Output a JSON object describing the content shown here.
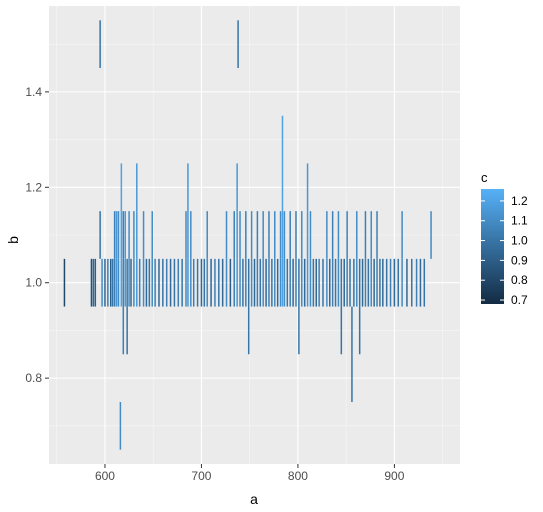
{
  "chart_data": {
    "type": "heatmap",
    "geom": "tile",
    "xlabel": "a",
    "ylabel": "b",
    "xlim": [
      542,
      968
    ],
    "ylim": [
      0.62,
      1.58
    ],
    "x_ticks": [
      600,
      700,
      800,
      900
    ],
    "y_ticks": [
      0.8,
      1.0,
      1.2,
      1.4
    ],
    "x_tick_labels": [
      "600",
      "700",
      "800",
      "900"
    ],
    "y_tick_labels": [
      "0.8",
      "1.0",
      "1.2",
      "1.4"
    ],
    "tile_height": 0.1,
    "grid": true,
    "legend": {
      "title": "c",
      "position": "right",
      "type": "colorbar",
      "range": [
        0.68,
        1.26
      ],
      "breaks": [
        0.7,
        0.8,
        0.9,
        1.0,
        1.1,
        1.2
      ],
      "labels": [
        "0.7",
        "0.8",
        "0.9",
        "1.0",
        "1.1",
        "1.2"
      ],
      "low_color": "#132B43",
      "high_color": "#56B1F7"
    },
    "columns": [
      {
        "x": 558,
        "y": [
          1.0
        ],
        "c": 0.8
      },
      {
        "x": 586,
        "y": [
          1.0
        ],
        "c": 0.85
      },
      {
        "x": 588,
        "y": [
          1.0
        ],
        "c": 0.95
      },
      {
        "x": 590,
        "y": [
          1.0
        ],
        "c": 0.9
      },
      {
        "x": 595,
        "y": [
          1.1,
          1.5
        ],
        "c": 1.0
      },
      {
        "x": 597,
        "y": [
          1.0
        ],
        "c": 1.1
      },
      {
        "x": 600,
        "y": [
          1.0
        ],
        "c": 0.95
      },
      {
        "x": 603,
        "y": [
          1.0
        ],
        "c": 1.05
      },
      {
        "x": 606,
        "y": [
          1.0
        ],
        "c": 0.9
      },
      {
        "x": 608,
        "y": [
          1.0
        ],
        "c": 1.0
      },
      {
        "x": 610,
        "y": [
          1.0,
          1.1
        ],
        "c": 1.05
      },
      {
        "x": 612,
        "y": [
          1.0,
          1.1
        ],
        "c": 1.15
      },
      {
        "x": 614,
        "y": [
          1.0,
          1.1
        ],
        "c": 1.1
      },
      {
        "x": 616,
        "y": [
          0.7
        ],
        "c": 1.1
      },
      {
        "x": 617,
        "y": [
          1.0,
          1.1,
          1.2
        ],
        "c": 1.2
      },
      {
        "x": 619,
        "y": [
          0.9,
          1.0,
          1.1
        ],
        "c": 1.05
      },
      {
        "x": 621,
        "y": [
          1.0,
          1.1
        ],
        "c": 1.15
      },
      {
        "x": 623,
        "y": [
          0.9,
          1.0
        ],
        "c": 1.0
      },
      {
        "x": 625,
        "y": [
          1.0,
          1.1
        ],
        "c": 1.1
      },
      {
        "x": 627,
        "y": [
          1.0
        ],
        "c": 0.95
      },
      {
        "x": 630,
        "y": [
          1.0,
          1.1
        ],
        "c": 1.1
      },
      {
        "x": 633,
        "y": [
          1.0,
          1.1,
          1.2
        ],
        "c": 1.15
      },
      {
        "x": 636,
        "y": [
          1.0
        ],
        "c": 1.05
      },
      {
        "x": 640,
        "y": [
          1.0,
          1.1
        ],
        "c": 1.1
      },
      {
        "x": 643,
        "y": [
          1.0
        ],
        "c": 0.95
      },
      {
        "x": 646,
        "y": [
          1.0
        ],
        "c": 1.0
      },
      {
        "x": 649,
        "y": [
          1.0,
          1.1
        ],
        "c": 1.1
      },
      {
        "x": 652,
        "y": [
          1.0
        ],
        "c": 1.05
      },
      {
        "x": 656,
        "y": [
          1.0
        ],
        "c": 0.95
      },
      {
        "x": 660,
        "y": [
          1.0
        ],
        "c": 1.0
      },
      {
        "x": 664,
        "y": [
          1.0
        ],
        "c": 1.05
      },
      {
        "x": 668,
        "y": [
          1.0
        ],
        "c": 0.95
      },
      {
        "x": 672,
        "y": [
          1.0
        ],
        "c": 1.0
      },
      {
        "x": 676,
        "y": [
          1.0
        ],
        "c": 1.05
      },
      {
        "x": 680,
        "y": [
          1.0
        ],
        "c": 1.0
      },
      {
        "x": 684,
        "y": [
          1.0,
          1.1
        ],
        "c": 1.1
      },
      {
        "x": 686,
        "y": [
          1.0,
          1.1,
          1.2
        ],
        "c": 1.15
      },
      {
        "x": 689,
        "y": [
          1.0,
          1.1
        ],
        "c": 1.1
      },
      {
        "x": 692,
        "y": [
          1.0
        ],
        "c": 1.05
      },
      {
        "x": 696,
        "y": [
          1.0
        ],
        "c": 1.0
      },
      {
        "x": 700,
        "y": [
          1.0
        ],
        "c": 0.95
      },
      {
        "x": 703,
        "y": [
          1.0
        ],
        "c": 1.0
      },
      {
        "x": 706,
        "y": [
          1.0,
          1.1
        ],
        "c": 1.1
      },
      {
        "x": 710,
        "y": [
          1.0
        ],
        "c": 0.95
      },
      {
        "x": 714,
        "y": [
          1.0
        ],
        "c": 1.05
      },
      {
        "x": 718,
        "y": [
          1.0
        ],
        "c": 1.0
      },
      {
        "x": 722,
        "y": [
          1.0
        ],
        "c": 0.95
      },
      {
        "x": 726,
        "y": [
          1.0,
          1.1
        ],
        "c": 1.1
      },
      {
        "x": 730,
        "y": [
          1.0
        ],
        "c": 0.9
      },
      {
        "x": 734,
        "y": [
          1.0,
          1.1
        ],
        "c": 1.05
      },
      {
        "x": 737,
        "y": [
          1.0,
          1.1,
          1.2
        ],
        "c": 1.15
      },
      {
        "x": 738,
        "y": [
          1.5
        ],
        "c": 1.0
      },
      {
        "x": 740,
        "y": [
          1.0,
          1.1
        ],
        "c": 1.1
      },
      {
        "x": 743,
        "y": [
          1.0
        ],
        "c": 1.0
      },
      {
        "x": 746,
        "y": [
          1.0,
          1.1
        ],
        "c": 1.05
      },
      {
        "x": 749,
        "y": [
          0.9,
          1.0
        ],
        "c": 1.0
      },
      {
        "x": 752,
        "y": [
          1.0,
          1.1
        ],
        "c": 1.1
      },
      {
        "x": 755,
        "y": [
          1.0
        ],
        "c": 0.95
      },
      {
        "x": 758,
        "y": [
          1.0,
          1.1
        ],
        "c": 1.05
      },
      {
        "x": 761,
        "y": [
          1.0
        ],
        "c": 1.0
      },
      {
        "x": 764,
        "y": [
          1.0,
          1.1
        ],
        "c": 1.1
      },
      {
        "x": 767,
        "y": [
          1.0
        ],
        "c": 0.95
      },
      {
        "x": 770,
        "y": [
          1.0,
          1.1
        ],
        "c": 1.05
      },
      {
        "x": 773,
        "y": [
          1.0
        ],
        "c": 1.0
      },
      {
        "x": 776,
        "y": [
          1.0,
          1.1
        ],
        "c": 1.1
      },
      {
        "x": 779,
        "y": [
          1.0
        ],
        "c": 0.95
      },
      {
        "x": 782,
        "y": [
          1.0,
          1.1
        ],
        "c": 1.1
      },
      {
        "x": 784,
        "y": [
          1.0,
          1.1,
          1.2,
          1.3
        ],
        "c": 1.2
      },
      {
        "x": 786,
        "y": [
          1.0,
          1.1
        ],
        "c": 1.1
      },
      {
        "x": 789,
        "y": [
          1.0
        ],
        "c": 1.0
      },
      {
        "x": 792,
        "y": [
          1.0,
          1.1
        ],
        "c": 1.05
      },
      {
        "x": 795,
        "y": [
          1.0
        ],
        "c": 0.95
      },
      {
        "x": 798,
        "y": [
          1.0,
          1.1
        ],
        "c": 1.05
      },
      {
        "x": 801,
        "y": [
          0.9,
          1.0
        ],
        "c": 1.0
      },
      {
        "x": 804,
        "y": [
          1.0,
          1.1
        ],
        "c": 1.1
      },
      {
        "x": 807,
        "y": [
          1.0
        ],
        "c": 0.95
      },
      {
        "x": 810,
        "y": [
          1.0,
          1.1,
          1.2
        ],
        "c": 1.15
      },
      {
        "x": 813,
        "y": [
          1.0,
          1.1
        ],
        "c": 1.1
      },
      {
        "x": 816,
        "y": [
          1.0
        ],
        "c": 1.0
      },
      {
        "x": 819,
        "y": [
          1.0
        ],
        "c": 0.95
      },
      {
        "x": 822,
        "y": [
          1.0
        ],
        "c": 1.05
      },
      {
        "x": 826,
        "y": [
          1.0
        ],
        "c": 1.0
      },
      {
        "x": 830,
        "y": [
          1.0,
          1.1
        ],
        "c": 1.1
      },
      {
        "x": 833,
        "y": [
          1.0
        ],
        "c": 0.95
      },
      {
        "x": 836,
        "y": [
          1.0,
          1.1
        ],
        "c": 1.05
      },
      {
        "x": 839,
        "y": [
          1.0
        ],
        "c": 1.0
      },
      {
        "x": 842,
        "y": [
          1.0,
          1.1
        ],
        "c": 1.1
      },
      {
        "x": 845,
        "y": [
          0.9,
          1.0
        ],
        "c": 1.0
      },
      {
        "x": 848,
        "y": [
          1.0
        ],
        "c": 0.95
      },
      {
        "x": 851,
        "y": [
          1.0,
          1.1
        ],
        "c": 1.05
      },
      {
        "x": 854,
        "y": [
          1.0
        ],
        "c": 1.0
      },
      {
        "x": 856,
        "y": [
          0.8,
          0.9
        ],
        "c": 1.0
      },
      {
        "x": 858,
        "y": [
          1.0
        ],
        "c": 1.0
      },
      {
        "x": 861,
        "y": [
          1.0,
          1.1
        ],
        "c": 1.1
      },
      {
        "x": 864,
        "y": [
          0.9,
          1.0
        ],
        "c": 1.0
      },
      {
        "x": 867,
        "y": [
          1.0
        ],
        "c": 0.95
      },
      {
        "x": 870,
        "y": [
          1.0,
          1.1
        ],
        "c": 1.05
      },
      {
        "x": 873,
        "y": [
          1.0
        ],
        "c": 1.0
      },
      {
        "x": 876,
        "y": [
          1.0,
          1.1
        ],
        "c": 1.1
      },
      {
        "x": 879,
        "y": [
          1.0
        ],
        "c": 0.95
      },
      {
        "x": 882,
        "y": [
          1.0,
          1.1
        ],
        "c": 1.05
      },
      {
        "x": 885,
        "y": [
          1.0
        ],
        "c": 1.0
      },
      {
        "x": 888,
        "y": [
          1.0
        ],
        "c": 0.95
      },
      {
        "x": 892,
        "y": [
          1.0
        ],
        "c": 1.0
      },
      {
        "x": 896,
        "y": [
          1.0
        ],
        "c": 1.05
      },
      {
        "x": 900,
        "y": [
          1.0
        ],
        "c": 0.95
      },
      {
        "x": 904,
        "y": [
          1.0
        ],
        "c": 1.0
      },
      {
        "x": 908,
        "y": [
          1.0,
          1.1
        ],
        "c": 1.1
      },
      {
        "x": 913,
        "y": [
          1.0
        ],
        "c": 0.95
      },
      {
        "x": 918,
        "y": [
          1.0
        ],
        "c": 1.0
      },
      {
        "x": 923,
        "y": [
          1.0
        ],
        "c": 1.05
      },
      {
        "x": 927,
        "y": [
          1.0
        ],
        "c": 0.95
      },
      {
        "x": 931,
        "y": [
          1.0
        ],
        "c": 1.0
      },
      {
        "x": 938,
        "y": [
          1.1
        ],
        "c": 1.1
      }
    ]
  }
}
